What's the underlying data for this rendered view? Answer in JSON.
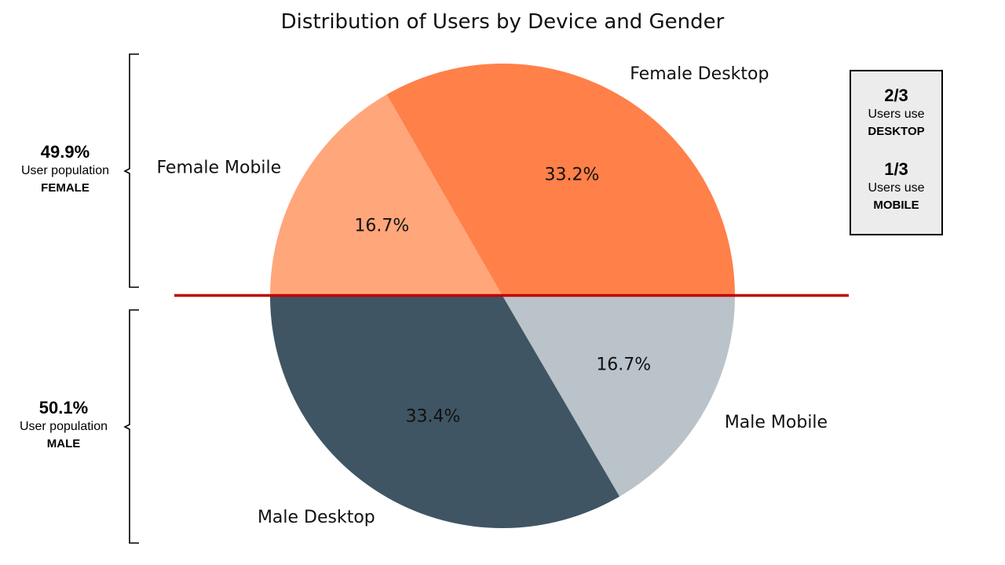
{
  "chart_data": {
    "type": "pie",
    "title": "Distribution of Users by Device and Gender",
    "start_angle_deg": 180,
    "direction": "clockwise",
    "slices": [
      {
        "label": "Female Mobile",
        "value": 16.7,
        "pct_label": "16.7%",
        "color": "#FFA67B"
      },
      {
        "label": "Female Desktop",
        "value": 33.2,
        "pct_label": "33.2%",
        "color": "#FF8049"
      },
      {
        "label": "Male Mobile",
        "value": 16.7,
        "pct_label": "16.7%",
        "color": "#BAC3C9"
      },
      {
        "label": "Male Desktop",
        "value": 33.4,
        "pct_label": "33.4%",
        "color": "#3F5563"
      }
    ]
  },
  "divider": {
    "color": "#C00000"
  },
  "gender_summary": {
    "female": {
      "pct": "49.9%",
      "line1": "User population",
      "line2": "FEMALE"
    },
    "male": {
      "pct": "50.1%",
      "line1": "User population",
      "line2": "MALE"
    }
  },
  "device_summary": {
    "desktop": {
      "fraction": "2/3",
      "line1": "Users use",
      "line2": "DESKTOP"
    },
    "mobile": {
      "fraction": "1/3",
      "line1": "Users use",
      "line2": "MOBILE"
    }
  }
}
